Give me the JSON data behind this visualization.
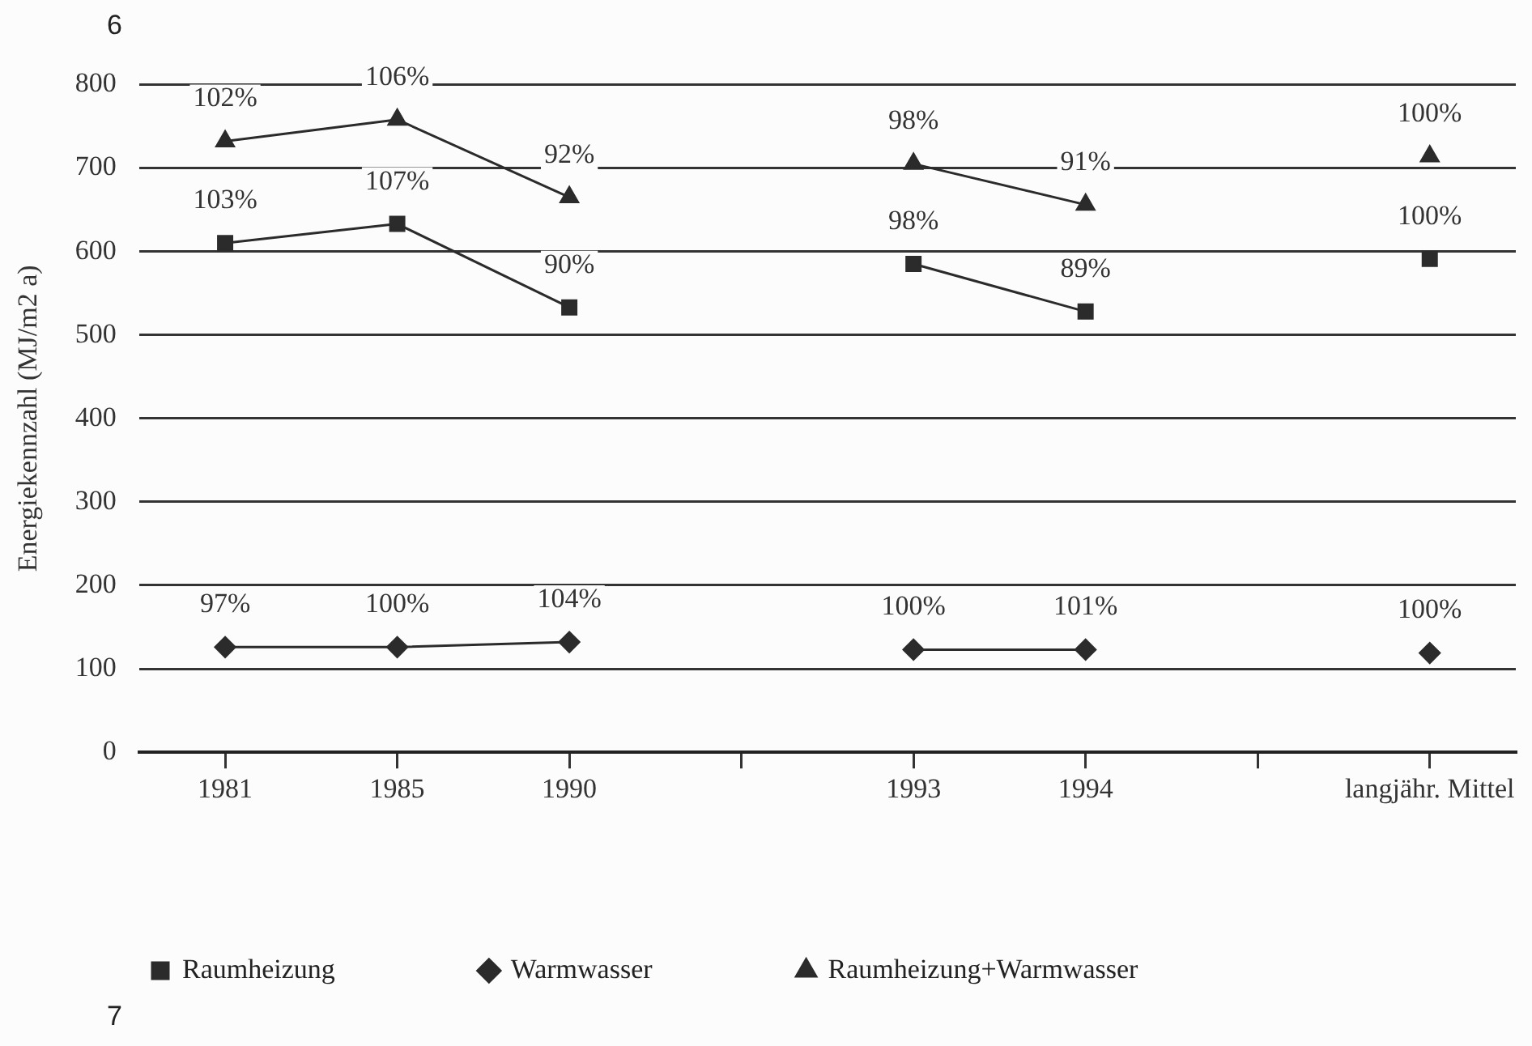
{
  "chart_data": {
    "type": "line",
    "ylabel": "Energiekennzahl (MJ/m2 a)",
    "categories": [
      "1981",
      "1985",
      "1990",
      null,
      "1993",
      "1994",
      null,
      "langjähr. Mittel"
    ],
    "series": [
      {
        "name": "Raumheizung",
        "color": "#2b2b2b",
        "marker": "square",
        "values": [
          610,
          633,
          533,
          null,
          585,
          528,
          null,
          591
        ]
      },
      {
        "name": "Warmwasser",
        "color": "#2b2b2b",
        "marker": "diamond",
        "values": [
          126,
          126,
          132,
          null,
          123,
          123,
          null,
          119
        ]
      },
      {
        "name": "Raumheizung+Warmwasser",
        "color": "#2b2b2b",
        "marker": "triangle",
        "values": [
          732,
          758,
          665,
          null,
          705,
          656,
          null,
          714
        ]
      }
    ],
    "ylim": [
      0,
      800
    ],
    "yticks": [
      0,
      100,
      200,
      300,
      400,
      500,
      600,
      700,
      800
    ],
    "grid": "y",
    "legend": "bottom",
    "line_style": "solid",
    "annotations": [
      "6",
      "7",
      {
        "text": "103%",
        "x": "1981",
        "y": 610
      },
      {
        "text": "107%",
        "x": "1985",
        "y": 633
      },
      {
        "text": "90%",
        "x": "1990",
        "y": 533
      },
      {
        "text": "98%",
        "x": "1993",
        "y": 585
      },
      {
        "text": "89%",
        "x": "1994",
        "y": 528
      },
      {
        "text": "100%",
        "x": "langjähr. Mittel",
        "y": 591
      },
      {
        "text": "97%",
        "x": "1981",
        "y": 126
      },
      {
        "text": "100%",
        "x": "1985",
        "y": 126
      },
      {
        "text": "104%",
        "x": "1990",
        "y": 132
      },
      {
        "text": "100%",
        "x": "1993",
        "y": 123
      },
      {
        "text": "101%",
        "x": "1994",
        "y": 123
      },
      {
        "text": "100%",
        "x": "langjähr. Mittel",
        "y": 119
      },
      {
        "text": "102%",
        "x": "1981",
        "y": 732
      },
      {
        "text": "106%",
        "x": "1985",
        "y": 758
      },
      {
        "text": "92%",
        "x": "1990",
        "y": 665
      },
      {
        "text": "98%",
        "x": "1993",
        "y": 705
      },
      {
        "text": "91%",
        "x": "1994",
        "y": 656
      },
      {
        "text": "100%",
        "x": "langjähr. Mittel",
        "y": 714
      }
    ]
  }
}
